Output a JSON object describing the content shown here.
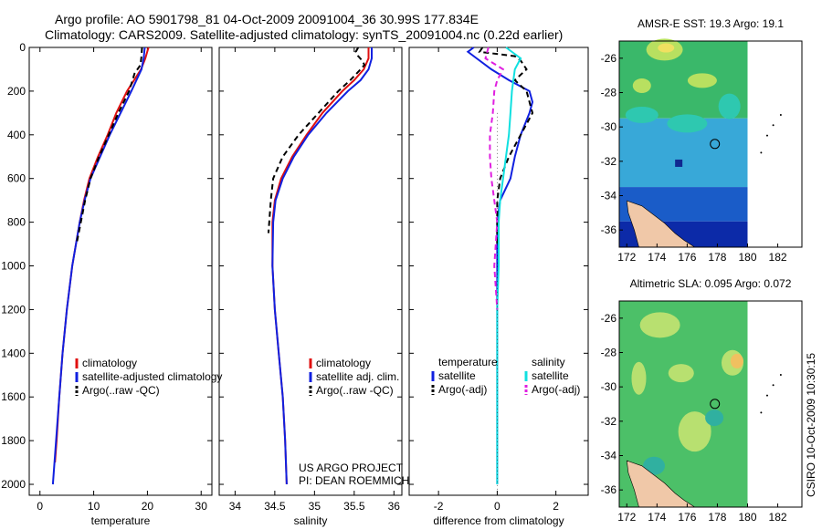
{
  "header": {
    "line1": "Argo profile: AO 5901798_81 04-Oct-2009 20091004_36 30.99S 177.834E",
    "line2": "Climatology: CARS2009. Satellite-adjusted climatology: synTS_20091004.nc (0.22d earlier)"
  },
  "credit": {
    "line1": "US ARGO PROJECT",
    "line2": "PI: DEAN ROEMMICH"
  },
  "stamp": "CSIRO 10-Oct-2009 10:30:15",
  "colors": {
    "red": "#e01010",
    "blue": "#1020e0",
    "black": "#000000",
    "cyan": "#10e0e0",
    "magenta": "#e020e0"
  },
  "chart_data": [
    {
      "type": "line",
      "xlabel": "temperature",
      "ylabel": "",
      "xlim": [
        -2,
        32
      ],
      "ylim": [
        2050,
        0
      ],
      "y_reversed": true,
      "xticks": [
        0,
        10,
        20,
        30
      ],
      "yticks": [
        0,
        200,
        400,
        600,
        800,
        1000,
        1200,
        1400,
        1600,
        1800,
        2000
      ],
      "legend": {
        "placement": "lower-right",
        "entries": [
          "climatology",
          "satellite-adjusted climatology",
          "Argo(..raw -QC)"
        ]
      },
      "series": [
        {
          "name": "climatology",
          "color": "red",
          "dash": "solid",
          "depth": [
            0,
            50,
            100,
            200,
            300,
            400,
            500,
            600,
            700,
            800,
            1000,
            1200,
            1400,
            1600,
            1800,
            1900
          ],
          "values": [
            20.2,
            19.6,
            18.8,
            16.2,
            14.2,
            12.6,
            10.8,
            9.2,
            8.2,
            7.4,
            6.0,
            5.0,
            4.2,
            3.6,
            3.1,
            2.8
          ]
        },
        {
          "name": "satellite-adjusted climatology",
          "color": "blue",
          "dash": "solid",
          "depth": [
            0,
            50,
            100,
            200,
            300,
            400,
            500,
            600,
            700,
            800,
            1000,
            1200,
            1400,
            1600,
            1800,
            2000
          ],
          "values": [
            19.5,
            19.3,
            18.9,
            17.0,
            15.0,
            13.0,
            11.2,
            9.4,
            8.3,
            7.4,
            6.0,
            5.0,
            4.2,
            3.6,
            3.0,
            2.4
          ]
        },
        {
          "name": "Argo(..raw -QC)",
          "color": "black",
          "dash": "dash",
          "depth": [
            0,
            40,
            80,
            120,
            200,
            300,
            400,
            500,
            600,
            700,
            800,
            900
          ],
          "values": [
            19.0,
            18.9,
            18.7,
            17.6,
            16.6,
            14.6,
            12.8,
            11.0,
            9.4,
            8.4,
            7.6,
            6.8
          ]
        }
      ]
    },
    {
      "type": "line",
      "xlabel": "salinity",
      "ylabel": "",
      "xlim": [
        33.8,
        36.1
      ],
      "ylim": [
        2050,
        0
      ],
      "y_reversed": true,
      "xticks": [
        34,
        34.5,
        35,
        35.5,
        36
      ],
      "yticks": [],
      "legend": {
        "placement": "lower-right",
        "entries": [
          "climatology",
          "satellite adj. clim.",
          "Argo(..raw -QC)"
        ]
      },
      "series": [
        {
          "name": "climatology",
          "color": "red",
          "dash": "solid",
          "depth": [
            0,
            50,
            100,
            150,
            200,
            300,
            400,
            500,
            600,
            700,
            800,
            1000,
            1200,
            1400,
            1600,
            1800,
            2000
          ],
          "values": [
            35.68,
            35.68,
            35.62,
            35.5,
            35.35,
            35.1,
            34.9,
            34.72,
            34.58,
            34.5,
            34.47,
            34.47,
            34.5,
            34.55,
            34.6,
            34.63,
            34.65
          ]
        },
        {
          "name": "satellite adj. clim.",
          "color": "blue",
          "dash": "solid",
          "depth": [
            0,
            50,
            100,
            150,
            200,
            300,
            400,
            500,
            600,
            700,
            800,
            1000,
            1200,
            1400,
            1600,
            1800,
            2000
          ],
          "values": [
            35.72,
            35.72,
            35.68,
            35.58,
            35.42,
            35.15,
            34.92,
            34.74,
            34.6,
            34.51,
            34.48,
            34.47,
            34.5,
            34.55,
            34.6,
            34.63,
            34.65
          ]
        },
        {
          "name": "Argo(..raw -QC)",
          "color": "black",
          "dash": "dash",
          "depth": [
            0,
            20,
            40,
            60,
            80,
            100,
            150,
            200,
            300,
            400,
            500,
            600,
            700,
            800,
            850
          ],
          "values": [
            35.55,
            35.52,
            35.55,
            35.6,
            35.63,
            35.58,
            35.45,
            35.3,
            35.05,
            34.8,
            34.6,
            34.48,
            34.45,
            34.43,
            34.42
          ]
        }
      ]
    },
    {
      "type": "line",
      "xlabel": "difference from climatology",
      "ylabel": "",
      "xlim": [
        -3,
        3.1
      ],
      "ylim": [
        2050,
        0
      ],
      "y_reversed": true,
      "xticks": [
        -2,
        0,
        2
      ],
      "yticks": [],
      "legend": {
        "placement": "lower-center",
        "headers": [
          "temperature",
          "salinity"
        ],
        "entries": [
          "satellite",
          "Argo(-adj)",
          "satellite",
          "Argo(-adj)"
        ]
      },
      "series": [
        {
          "name": "satellite",
          "color": "blue",
          "dash": "solid",
          "depth": [
            0,
            20,
            50,
            100,
            150,
            200,
            250,
            300,
            400,
            500,
            600,
            700,
            800,
            900,
            1000,
            1200,
            1400,
            1600,
            1800,
            2000
          ],
          "values": [
            -0.8,
            -1.0,
            -0.7,
            -0.2,
            0.4,
            1.1,
            1.2,
            1.1,
            0.8,
            0.6,
            0.45,
            0.1,
            0.0,
            0.0,
            0.0,
            0.0,
            0.0,
            0.0,
            0.0,
            0.0
          ]
        },
        {
          "name": "Argo(-adj)",
          "color": "black",
          "dash": "dash",
          "depth": [
            0,
            20,
            40,
            60,
            80,
            100,
            150,
            200,
            300,
            400,
            500,
            600,
            700,
            800,
            900
          ],
          "values": [
            -0.5,
            -0.6,
            0.6,
            0.8,
            0.9,
            1.0,
            0.6,
            1.0,
            1.2,
            0.8,
            0.4,
            0.1,
            0.0,
            0.0,
            0.0
          ]
        },
        {
          "name": "satellite",
          "color": "cyan",
          "dash": "solid",
          "depth": [
            0,
            50,
            100,
            200,
            300,
            400,
            500,
            600,
            700,
            800,
            1000,
            1200,
            1400,
            1600,
            1800,
            2000
          ],
          "values": [
            0.3,
            0.8,
            0.6,
            0.5,
            0.45,
            0.4,
            0.3,
            0.2,
            0.1,
            0.05,
            0.05,
            0.0,
            0.0,
            0.0,
            0.0,
            0.0
          ]
        },
        {
          "name": "Argo(-adj)",
          "color": "magenta",
          "dash": "dash",
          "depth": [
            0,
            50,
            100,
            150,
            200,
            300,
            400,
            500,
            600,
            700,
            800,
            900,
            1000,
            1100,
            1200
          ],
          "values": [
            -0.3,
            -0.4,
            0.2,
            0.0,
            -0.1,
            -0.15,
            -0.25,
            -0.25,
            -0.2,
            -0.1,
            0.0,
            -0.05,
            -0.1,
            -0.05,
            0.0
          ]
        }
      ]
    },
    {
      "type": "heatmap",
      "title": "AMSR-E SST: 19.3 Argo: 19.1",
      "xlim": [
        171.5,
        183.6
      ],
      "ylim": [
        -37,
        -25
      ],
      "xticks": [
        172,
        174,
        176,
        178,
        180,
        182
      ],
      "yticks": [
        -26,
        -28,
        -30,
        -32,
        -34,
        -36
      ],
      "argo_position": {
        "lon": 177.834,
        "lat": -30.99
      }
    },
    {
      "type": "heatmap",
      "title": "Altimetric SLA: 0.095 Argo: 0.072",
      "xlim": [
        171.5,
        183.6
      ],
      "ylim": [
        -37,
        -25
      ],
      "xticks": [
        172,
        174,
        176,
        178,
        180,
        182
      ],
      "yticks": [
        -26,
        -28,
        -30,
        -32,
        -34,
        -36
      ],
      "argo_position": {
        "lon": 177.834,
        "lat": -30.99
      }
    }
  ]
}
